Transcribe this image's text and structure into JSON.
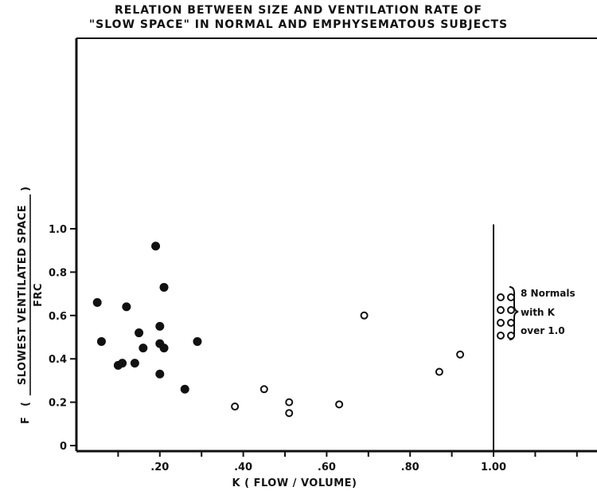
{
  "chart_data": {
    "type": "scatter",
    "title_line1": "RELATION BETWEEN SIZE AND VENTILATION RATE OF",
    "title_line2": "\"SLOW SPACE\" IN NORMAL AND EMPHYSEMATOUS SUBJECTS",
    "xlabel": "K ( FLOW / VOLUME)",
    "ylabel_prefix": "F",
    "ylabel_numerator": "SLOWEST VENTILATED SPACE",
    "ylabel_denominator": "FRC",
    "xlim": [
      0,
      1.25
    ],
    "ylim": [
      0,
      1.0
    ],
    "x_ticks": [
      {
        "value": 0.2,
        "label": ".20"
      },
      {
        "value": 0.4,
        "label": ".40"
      },
      {
        "value": 0.6,
        "label": ".60"
      },
      {
        "value": 0.8,
        "label": ".80"
      },
      {
        "value": 1.0,
        "label": "1.00"
      }
    ],
    "y_ticks": [
      {
        "value": 0,
        "label": "0"
      },
      {
        "value": 0.2,
        "label": "0.2"
      },
      {
        "value": 0.4,
        "label": "0.4"
      },
      {
        "value": 0.6,
        "label": "0.6"
      },
      {
        "value": 0.8,
        "label": "0.8"
      },
      {
        "value": 1.0,
        "label": "1.0"
      }
    ],
    "grid": false,
    "series": [
      {
        "marker": "filled-circle",
        "points": [
          [
            0.05,
            0.66
          ],
          [
            0.06,
            0.48
          ],
          [
            0.1,
            0.37
          ],
          [
            0.11,
            0.38
          ],
          [
            0.12,
            0.64
          ],
          [
            0.14,
            0.38
          ],
          [
            0.15,
            0.52
          ],
          [
            0.16,
            0.45
          ],
          [
            0.19,
            0.92
          ],
          [
            0.2,
            0.55
          ],
          [
            0.2,
            0.47
          ],
          [
            0.2,
            0.33
          ],
          [
            0.21,
            0.73
          ],
          [
            0.21,
            0.45
          ],
          [
            0.26,
            0.26
          ],
          [
            0.29,
            0.48
          ]
        ]
      },
      {
        "marker": "open-circle",
        "points": [
          [
            0.38,
            0.18
          ],
          [
            0.45,
            0.26
          ],
          [
            0.51,
            0.2
          ],
          [
            0.51,
            0.15
          ],
          [
            0.63,
            0.19
          ],
          [
            0.69,
            0.6
          ],
          [
            0.87,
            0.34
          ],
          [
            0.92,
            0.42
          ]
        ]
      }
    ],
    "reference_line_x": 1.0,
    "side_note": {
      "lines": [
        "8 Normals",
        "with K",
        "over 1.0"
      ],
      "marker": "open-circle",
      "marker_count": 8
    }
  }
}
